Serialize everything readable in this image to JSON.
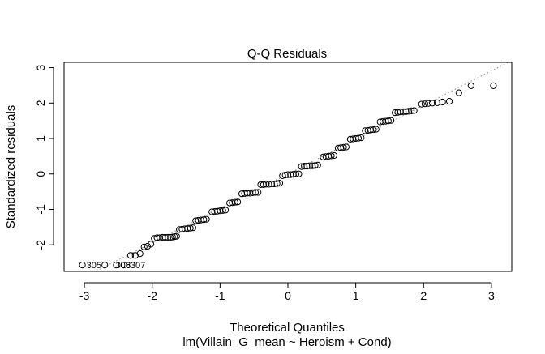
{
  "chart_data": {
    "type": "scatter",
    "title": "Q-Q Residuals",
    "xlabel": "Theoretical Quantiles",
    "subtitle": "lm(Villain_G_mean ~ Heroism + Cond)",
    "ylabel": "Standardized residuals",
    "xlim": [
      -3.3,
      3.3
    ],
    "ylim": [
      -2.75,
      3.15
    ],
    "x_ticks": [
      -3,
      -2,
      -1,
      0,
      1,
      2,
      3
    ],
    "y_ticks": [
      -2,
      -1,
      0,
      1,
      2,
      3
    ],
    "reference_line": {
      "style": "dotted",
      "color": "#888888",
      "intercept": 0.0,
      "slope": 0.97
    },
    "points": [
      {
        "x": -3.03,
        "y": -2.57
      },
      {
        "x": -2.7,
        "y": -2.57
      },
      {
        "x": -2.53,
        "y": -2.57
      },
      {
        "x": -2.42,
        "y": -2.57
      },
      {
        "x": -2.32,
        "y": -2.3
      },
      {
        "x": -2.25,
        "y": -2.3
      },
      {
        "x": -2.18,
        "y": -2.25
      },
      {
        "x": -2.12,
        "y": -2.06
      },
      {
        "x": -2.07,
        "y": -2.04
      },
      {
        "x": -2.02,
        "y": -1.98
      },
      {
        "x": -1.97,
        "y": -1.82
      },
      {
        "x": -1.93,
        "y": -1.8
      },
      {
        "x": -1.89,
        "y": -1.8
      },
      {
        "x": -1.85,
        "y": -1.79
      },
      {
        "x": -1.81,
        "y": -1.79
      },
      {
        "x": -1.77,
        "y": -1.79
      },
      {
        "x": -1.73,
        "y": -1.79
      },
      {
        "x": -1.7,
        "y": -1.78
      },
      {
        "x": -1.67,
        "y": -1.77
      },
      {
        "x": -1.64,
        "y": -1.76
      },
      {
        "x": -1.6,
        "y": -1.57
      },
      {
        "x": -1.56,
        "y": -1.56
      },
      {
        "x": -1.52,
        "y": -1.55
      },
      {
        "x": -1.48,
        "y": -1.54
      },
      {
        "x": -1.44,
        "y": -1.53
      },
      {
        "x": -1.4,
        "y": -1.52
      },
      {
        "x": -1.36,
        "y": -1.32
      },
      {
        "x": -1.32,
        "y": -1.31
      },
      {
        "x": -1.28,
        "y": -1.3
      },
      {
        "x": -1.24,
        "y": -1.29
      },
      {
        "x": -1.2,
        "y": -1.28
      },
      {
        "x": -1.12,
        "y": -1.07
      },
      {
        "x": -1.08,
        "y": -1.06
      },
      {
        "x": -1.04,
        "y": -1.05
      },
      {
        "x": -1.0,
        "y": -1.04
      },
      {
        "x": -0.96,
        "y": -1.03
      },
      {
        "x": -0.92,
        "y": -1.02
      },
      {
        "x": -0.86,
        "y": -0.82
      },
      {
        "x": -0.82,
        "y": -0.81
      },
      {
        "x": -0.78,
        "y": -0.8
      },
      {
        "x": -0.74,
        "y": -0.79
      },
      {
        "x": -0.68,
        "y": -0.56
      },
      {
        "x": -0.64,
        "y": -0.55
      },
      {
        "x": -0.6,
        "y": -0.54
      },
      {
        "x": -0.56,
        "y": -0.54
      },
      {
        "x": -0.52,
        "y": -0.53
      },
      {
        "x": -0.48,
        "y": -0.52
      },
      {
        "x": -0.44,
        "y": -0.52
      },
      {
        "x": -0.4,
        "y": -0.3
      },
      {
        "x": -0.36,
        "y": -0.3
      },
      {
        "x": -0.32,
        "y": -0.29
      },
      {
        "x": -0.28,
        "y": -0.29
      },
      {
        "x": -0.24,
        "y": -0.28
      },
      {
        "x": -0.2,
        "y": -0.28
      },
      {
        "x": -0.16,
        "y": -0.27
      },
      {
        "x": -0.12,
        "y": -0.26
      },
      {
        "x": -0.08,
        "y": -0.05
      },
      {
        "x": -0.04,
        "y": -0.03
      },
      {
        "x": 0.0,
        "y": -0.02
      },
      {
        "x": 0.04,
        "y": -0.02
      },
      {
        "x": 0.08,
        "y": -0.01
      },
      {
        "x": 0.12,
        "y": 0.0
      },
      {
        "x": 0.16,
        "y": 0.0
      },
      {
        "x": 0.2,
        "y": 0.21
      },
      {
        "x": 0.24,
        "y": 0.22
      },
      {
        "x": 0.28,
        "y": 0.22
      },
      {
        "x": 0.32,
        "y": 0.23
      },
      {
        "x": 0.36,
        "y": 0.23
      },
      {
        "x": 0.4,
        "y": 0.24
      },
      {
        "x": 0.44,
        "y": 0.25
      },
      {
        "x": 0.52,
        "y": 0.48
      },
      {
        "x": 0.56,
        "y": 0.49
      },
      {
        "x": 0.6,
        "y": 0.5
      },
      {
        "x": 0.64,
        "y": 0.51
      },
      {
        "x": 0.68,
        "y": 0.52
      },
      {
        "x": 0.74,
        "y": 0.73
      },
      {
        "x": 0.78,
        "y": 0.74
      },
      {
        "x": 0.82,
        "y": 0.75
      },
      {
        "x": 0.86,
        "y": 0.76
      },
      {
        "x": 0.92,
        "y": 0.98
      },
      {
        "x": 0.96,
        "y": 0.99
      },
      {
        "x": 1.0,
        "y": 1.0
      },
      {
        "x": 1.04,
        "y": 1.01
      },
      {
        "x": 1.08,
        "y": 1.02
      },
      {
        "x": 1.14,
        "y": 1.22
      },
      {
        "x": 1.18,
        "y": 1.23
      },
      {
        "x": 1.22,
        "y": 1.24
      },
      {
        "x": 1.26,
        "y": 1.25
      },
      {
        "x": 1.3,
        "y": 1.26
      },
      {
        "x": 1.36,
        "y": 1.47
      },
      {
        "x": 1.4,
        "y": 1.48
      },
      {
        "x": 1.44,
        "y": 1.49
      },
      {
        "x": 1.48,
        "y": 1.5
      },
      {
        "x": 1.52,
        "y": 1.51
      },
      {
        "x": 1.58,
        "y": 1.73
      },
      {
        "x": 1.62,
        "y": 1.74
      },
      {
        "x": 1.66,
        "y": 1.75
      },
      {
        "x": 1.7,
        "y": 1.76
      },
      {
        "x": 1.74,
        "y": 1.76
      },
      {
        "x": 1.78,
        "y": 1.77
      },
      {
        "x": 1.82,
        "y": 1.78
      },
      {
        "x": 1.86,
        "y": 1.79
      },
      {
        "x": 1.97,
        "y": 1.97
      },
      {
        "x": 2.02,
        "y": 1.98
      },
      {
        "x": 2.07,
        "y": 1.99
      },
      {
        "x": 2.13,
        "y": 2.0
      },
      {
        "x": 2.2,
        "y": 2.01
      },
      {
        "x": 2.28,
        "y": 2.03
      },
      {
        "x": 2.38,
        "y": 2.05
      },
      {
        "x": 2.52,
        "y": 2.29
      },
      {
        "x": 2.7,
        "y": 2.49
      },
      {
        "x": 3.03,
        "y": 2.49
      }
    ],
    "labels": [
      {
        "text": "305",
        "x": -3.03,
        "y": -2.57
      },
      {
        "text": "306",
        "x": -2.6,
        "y": -2.57
      },
      {
        "text": "8",
        "x": -2.45,
        "y": -2.57
      },
      {
        "text": "307",
        "x": -2.38,
        "y": -2.57
      }
    ]
  }
}
